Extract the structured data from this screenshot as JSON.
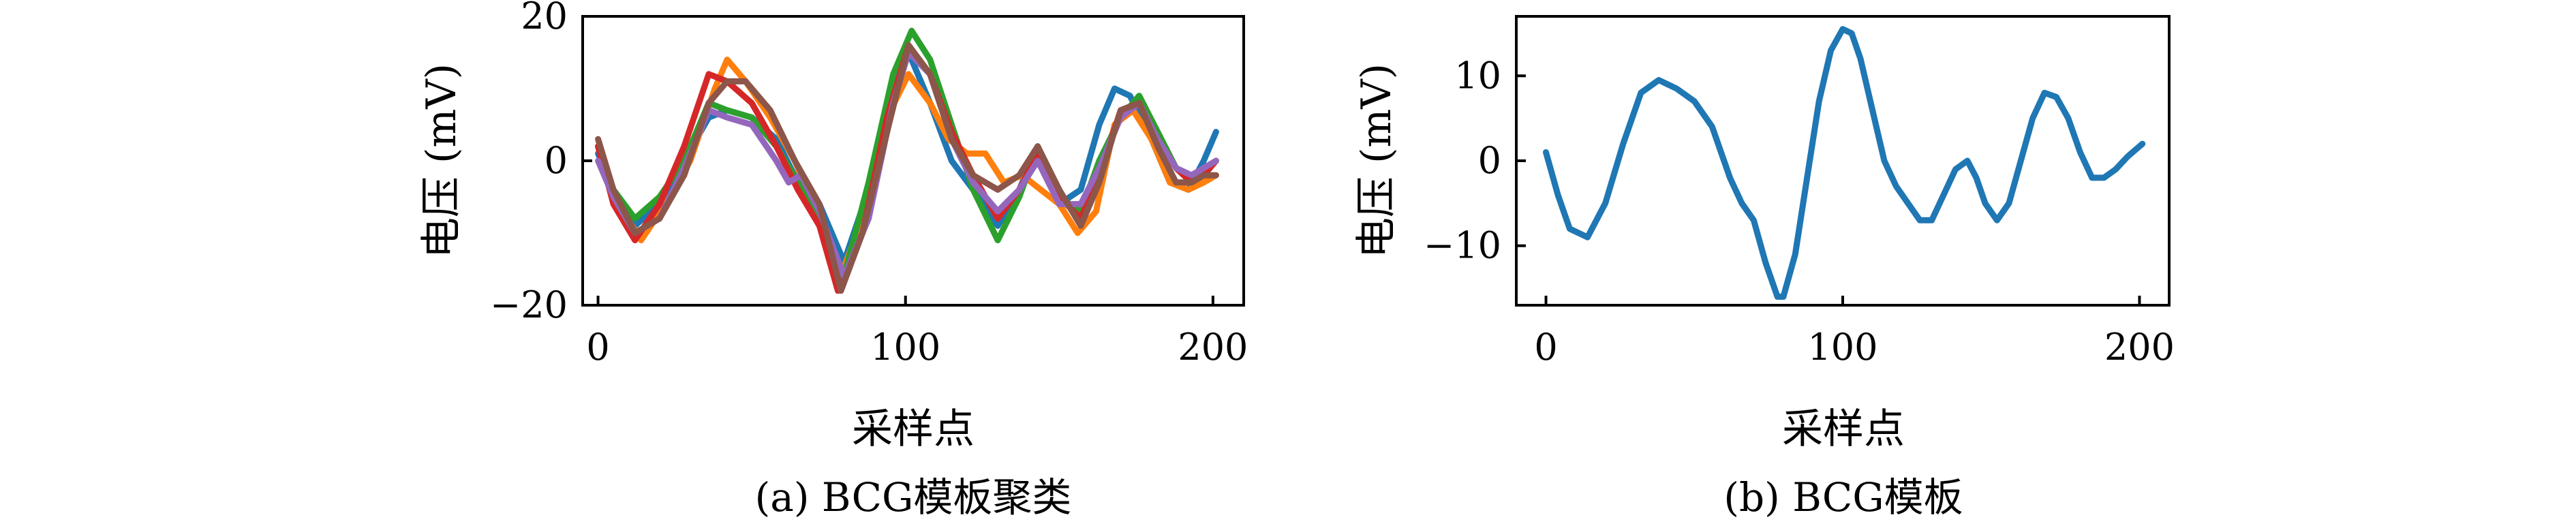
{
  "chart_data": [
    {
      "type": "line",
      "caption": "(a) BCG模板聚类",
      "xlabel": "采样点",
      "ylabel": "电压 (mV)",
      "xlim": [
        -5,
        210
      ],
      "ylim": [
        -20,
        20
      ],
      "xticks": [
        0,
        100,
        200
      ],
      "yticks": [
        -20,
        0,
        20
      ],
      "xtick_labels": [
        "0",
        "100",
        "200"
      ],
      "ytick_labels": [
        "−20",
        "0",
        "20"
      ],
      "series": [
        {
          "color": "#1f77b4",
          "x": [
            0,
            5,
            12,
            20,
            28,
            36,
            42,
            50,
            58,
            65,
            72,
            80,
            88,
            95,
            101,
            108,
            115,
            122,
            130,
            137,
            143,
            150,
            157,
            163,
            168,
            173,
            180,
            186,
            192,
            197,
            201
          ],
          "y": [
            1,
            -4,
            -9,
            -6,
            0,
            6,
            7,
            6,
            3,
            -3,
            -6,
            -14,
            -4,
            10,
            15,
            8,
            0,
            -4,
            -9,
            -4,
            2,
            -6,
            -4,
            5,
            10,
            9,
            3,
            -3,
            -4,
            0,
            4
          ]
        },
        {
          "color": "#ff7f0e",
          "x": [
            0,
            5,
            14,
            22,
            30,
            38,
            42,
            48,
            56,
            64,
            72,
            78,
            86,
            94,
            101,
            108,
            114,
            120,
            126,
            132,
            138,
            144,
            150,
            156,
            162,
            168,
            174,
            180,
            186,
            192,
            197,
            201
          ],
          "y": [
            2,
            -5,
            -11,
            -6,
            0,
            10,
            14,
            11,
            6,
            0,
            -8,
            -17,
            -8,
            6,
            12,
            8,
            3,
            1,
            1,
            -3,
            -2,
            -4,
            -6,
            -10,
            -7,
            5,
            7,
            3,
            -3,
            -4,
            -3,
            -2
          ]
        },
        {
          "color": "#2ca02c",
          "x": [
            0,
            5,
            12,
            20,
            28,
            36,
            42,
            50,
            58,
            65,
            72,
            80,
            88,
            96,
            102,
            108,
            115,
            122,
            130,
            137,
            143,
            150,
            157,
            163,
            170,
            176,
            182,
            188,
            193,
            197,
            201
          ],
          "y": [
            2,
            -4,
            -8,
            -5,
            0,
            8,
            7,
            6,
            2,
            -3,
            -8,
            -16,
            -3,
            12,
            18,
            14,
            5,
            -4,
            -11,
            -5,
            2,
            -5,
            -7,
            0,
            6,
            9,
            4,
            -1,
            -3,
            -2,
            0
          ]
        },
        {
          "color": "#d62728",
          "x": [
            0,
            5,
            12,
            20,
            28,
            36,
            42,
            50,
            58,
            65,
            72,
            78,
            86,
            94,
            101,
            108,
            115,
            122,
            130,
            137,
            143,
            150,
            157,
            163,
            170,
            176,
            182,
            188,
            193,
            197,
            201
          ],
          "y": [
            2,
            -6,
            -11,
            -6,
            2,
            12,
            11,
            8,
            2,
            -4,
            -9,
            -18,
            -10,
            6,
            16,
            12,
            4,
            -2,
            -8,
            -4,
            1,
            -5,
            -8,
            -2,
            7,
            8,
            3,
            -1,
            -3,
            -2,
            0
          ]
        },
        {
          "color": "#9467bd",
          "x": [
            0,
            5,
            12,
            20,
            28,
            36,
            42,
            50,
            58,
            62,
            66,
            72,
            80,
            88,
            96,
            101,
            108,
            115,
            122,
            130,
            137,
            143,
            150,
            157,
            163,
            170,
            176,
            182,
            188,
            193,
            197,
            201
          ],
          "y": [
            0,
            -5,
            -10,
            -8,
            -1,
            7,
            6,
            5,
            0,
            -3,
            -2,
            -7,
            -16,
            -8,
            8,
            15,
            12,
            3,
            -3,
            -7,
            -4,
            0,
            -6,
            -6,
            -1,
            6,
            8,
            3,
            -1,
            -2,
            -1,
            0
          ]
        },
        {
          "color": "#8c564b",
          "x": [
            0,
            5,
            12,
            20,
            28,
            36,
            42,
            48,
            56,
            64,
            72,
            79,
            86,
            94,
            101,
            108,
            115,
            122,
            130,
            137,
            143,
            150,
            157,
            163,
            170,
            176,
            182,
            188,
            193,
            197,
            201
          ],
          "y": [
            3,
            -4,
            -10,
            -8,
            -2,
            8,
            11,
            11,
            7,
            0,
            -6,
            -18,
            -10,
            4,
            16,
            12,
            3,
            -2,
            -4,
            -2,
            2,
            -4,
            -9,
            -3,
            7,
            8,
            2,
            -3,
            -3,
            -2,
            -2
          ]
        }
      ]
    },
    {
      "type": "line",
      "caption": "(b) BCG模板",
      "xlabel": "采样点",
      "ylabel": "电压 (mV)",
      "xlim": [
        -10,
        210
      ],
      "ylim": [
        -17,
        17
      ],
      "xticks": [
        0,
        100,
        200
      ],
      "yticks": [
        -10,
        0,
        10
      ],
      "xtick_labels": [
        "0",
        "100",
        "200"
      ],
      "ytick_labels": [
        "−10",
        "0",
        "10"
      ],
      "series": [
        {
          "color": "#1f77b4",
          "x": [
            0,
            4,
            8,
            14,
            20,
            26,
            32,
            38,
            44,
            50,
            56,
            62,
            66,
            70,
            74,
            78,
            80,
            84,
            88,
            92,
            96,
            100,
            103,
            106,
            110,
            114,
            118,
            122,
            126,
            130,
            134,
            138,
            142,
            145,
            148,
            152,
            156,
            160,
            164,
            168,
            172,
            176,
            180,
            184,
            188,
            192,
            196,
            201
          ],
          "y": [
            1,
            -4,
            -8,
            -9,
            -5,
            2,
            8,
            9.5,
            8.5,
            7,
            4,
            -2,
            -5,
            -7,
            -12,
            -16,
            -16,
            -11,
            -2,
            7,
            13,
            15.5,
            15,
            12,
            6,
            0,
            -3,
            -5,
            -7,
            -7,
            -4,
            -1,
            0,
            -2,
            -5,
            -7,
            -5,
            0,
            5,
            8,
            7.5,
            5,
            1,
            -2,
            -2,
            -1,
            0.5,
            2
          ]
        }
      ]
    }
  ]
}
